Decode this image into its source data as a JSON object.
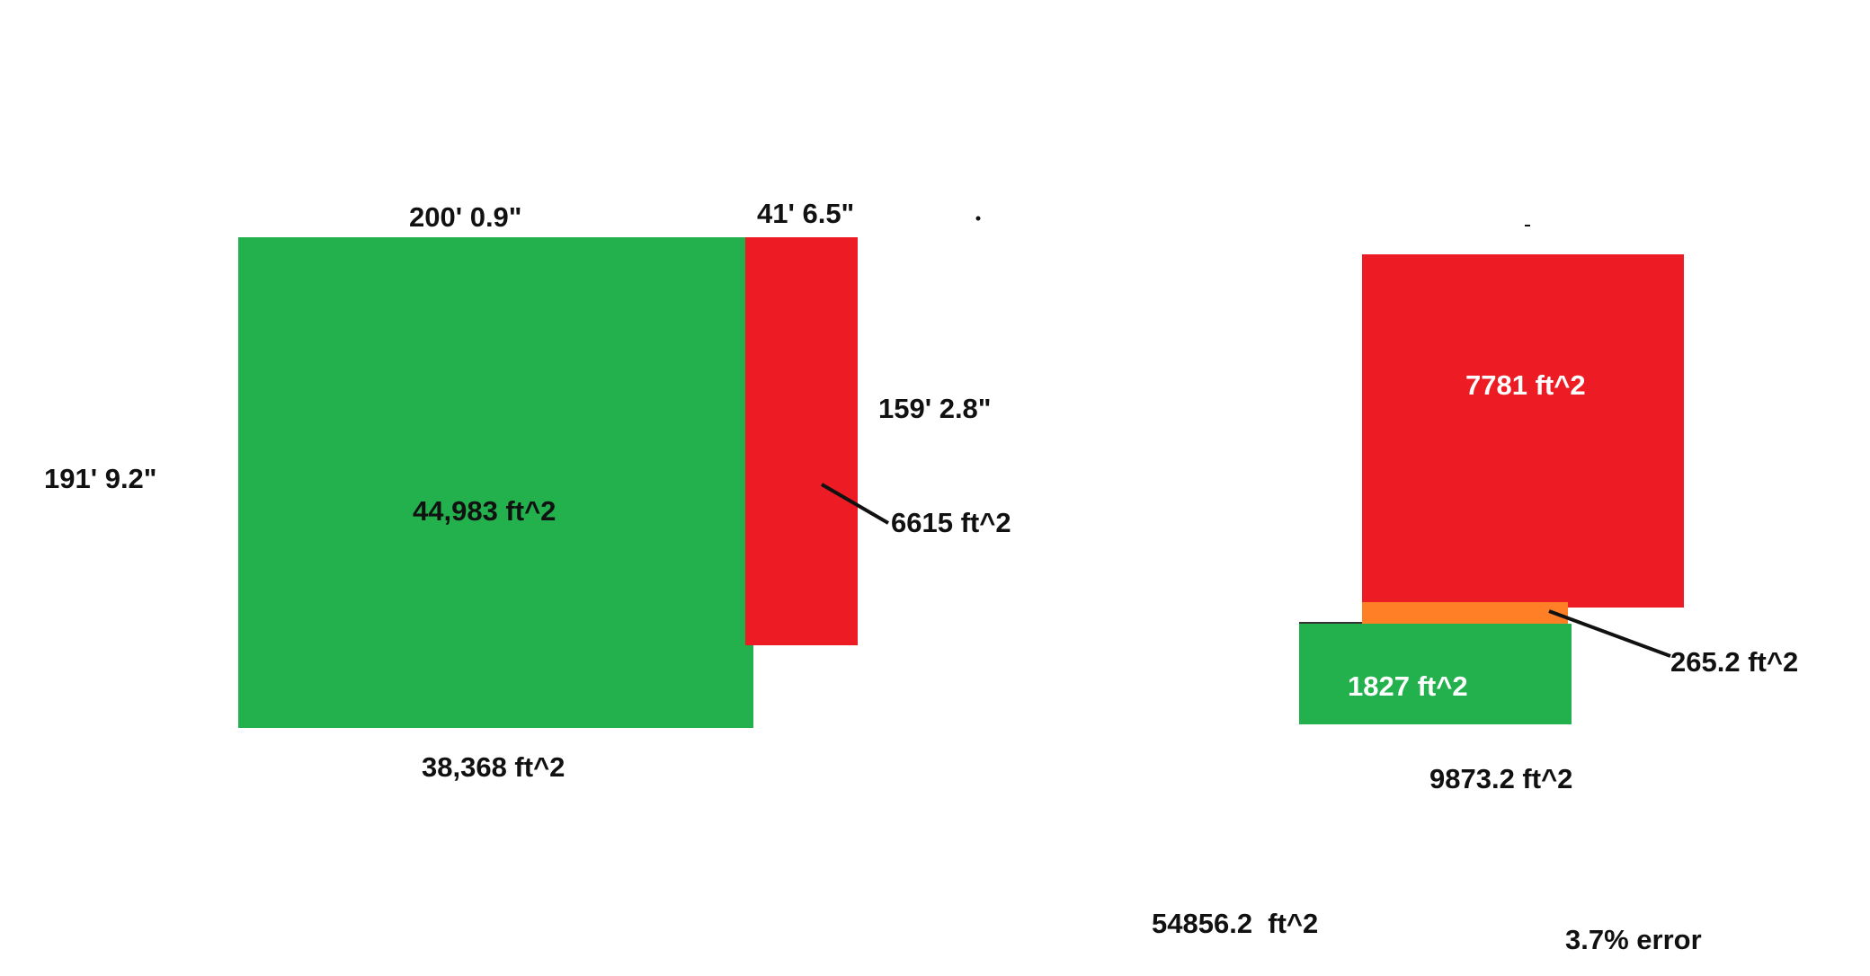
{
  "colors": {
    "green": "#22b14c",
    "red": "#ed1c24",
    "orange": "#ff7f27",
    "text": "#111111",
    "text_on_fill": "#ffffff",
    "background": "#ffffff"
  },
  "left_figure": {
    "top_width_label": "200' 0.9\"",
    "red_width_label": "41' 6.5\"",
    "left_height_label": "191' 9.2\"",
    "red_height_label": "159' 2.8\"",
    "green_area_label": "44,983 ft^2",
    "red_area_label": "6615 ft^2",
    "bottom_area_label": "38,368 ft^2"
  },
  "right_figure": {
    "red_area_label": "7781 ft^2",
    "orange_area_label": "265.2 ft^2",
    "green_area_label": "1827 ft^2",
    "total_label": "9873.2 ft^2"
  },
  "summary": {
    "total_area_label": "54856.2  ft^2",
    "error_label": "3.7% error"
  }
}
